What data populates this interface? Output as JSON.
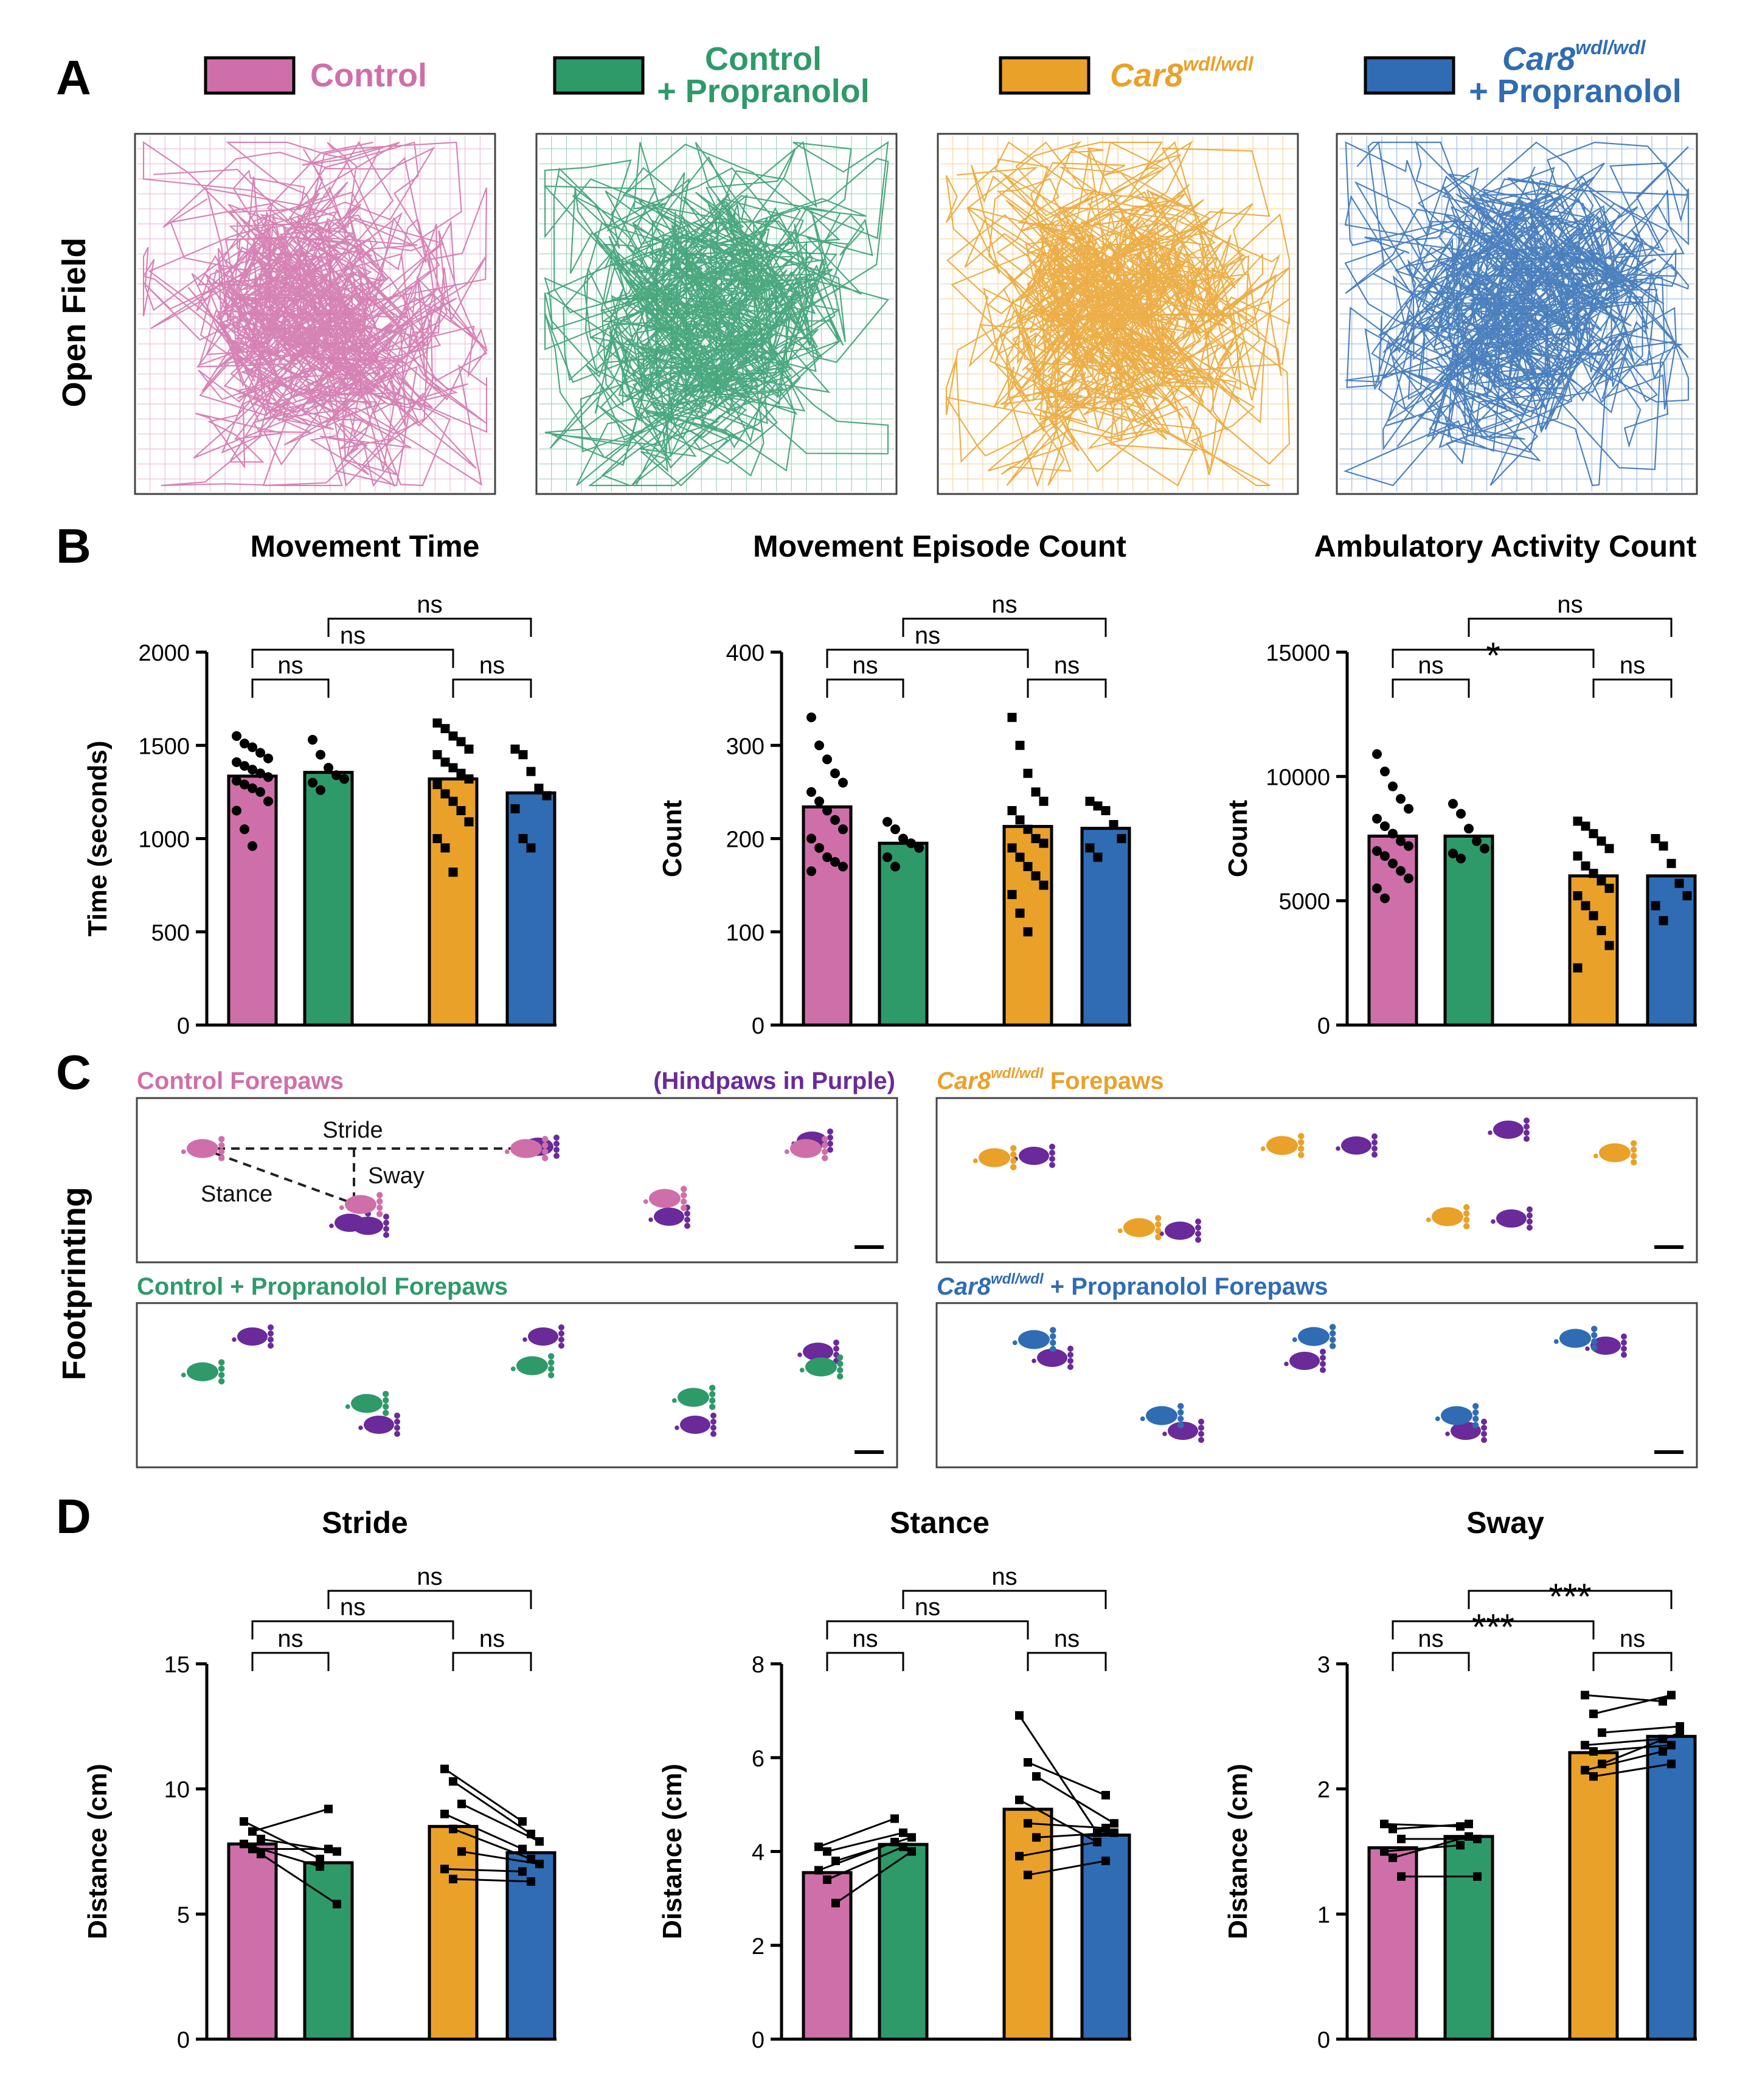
{
  "colors": {
    "control": "#cf6fa9",
    "control_prop": "#2e9a6a",
    "car8": "#e9a12a",
    "car8_prop": "#2f6cb3",
    "hind": "#6a2a9a"
  },
  "panel_letters": {
    "a": "A",
    "b": "B",
    "c": "C",
    "d": "D"
  },
  "legend": [
    {
      "key": "control",
      "line1": "Control",
      "line2": ""
    },
    {
      "key": "control_prop",
      "line1": "Control",
      "line2": "+ Propranolol"
    },
    {
      "key": "car8",
      "line1": "Car8",
      "sup": "wdl/wdl",
      "line2": ""
    },
    {
      "key": "car8_prop",
      "line1": "Car8",
      "sup": "wdl/wdl",
      "line2": "+ Propranolol"
    }
  ],
  "row_labels": {
    "open_field": "Open Field",
    "footprinting": "Footprinting"
  },
  "footprint_labels": {
    "control": "Control Forepaws",
    "hind": "(Hindpaws in Purple)",
    "car8_name": "Car8",
    "car8_sup": "wdl/wdl",
    "car8_suffix": " Forepaws",
    "control_prop": "Control + Propranolol Forepaws",
    "car8_prop_suffix": " + Propranolol Forepaws",
    "stride": "Stride",
    "stance": "Stance",
    "sway": "Sway"
  },
  "chart_data": [
    {
      "panel": "B",
      "type": "bar",
      "title": "Movement Time",
      "ylabel": "Time (seconds)",
      "ylim": [
        0,
        2000
      ],
      "yticks": [
        0,
        500,
        1000,
        1500,
        2000
      ],
      "categories": [
        "Control",
        "Control + Propranolol",
        "Car8 wdl/wdl",
        "Car8 wdl/wdl + Propranolol"
      ],
      "values": [
        1335,
        1355,
        1320,
        1245
      ],
      "points": [
        [
          1550,
          1510,
          1490,
          1460,
          1430,
          1410,
          1390,
          1370,
          1350,
          1330,
          1310,
          1290,
          1270,
          1250,
          1200,
          1150,
          1050,
          960
        ],
        [
          1530,
          1450,
          1380,
          1340,
          1320,
          1300,
          1260
        ],
        [
          1620,
          1590,
          1550,
          1520,
          1480,
          1450,
          1410,
          1380,
          1350,
          1320,
          1290,
          1240,
          1200,
          1150,
          1090,
          1000,
          950,
          820
        ],
        [
          1480,
          1450,
          1360,
          1270,
          1230,
          1160,
          1000,
          950
        ]
      ],
      "comparisons": [
        "ns",
        "ns",
        "ns",
        "ns"
      ]
    },
    {
      "panel": "B",
      "type": "bar",
      "title": "Movement Episode Count",
      "ylabel": "Count",
      "ylim": [
        0,
        400
      ],
      "yticks": [
        0,
        100,
        200,
        300,
        400
      ],
      "categories": [
        "Control",
        "Control + Propranolol",
        "Car8 wdl/wdl",
        "Car8 wdl/wdl + Propranolol"
      ],
      "values": [
        234,
        195,
        213,
        211
      ],
      "points": [
        [
          330,
          300,
          285,
          270,
          260,
          250,
          240,
          230,
          220,
          210,
          200,
          190,
          180,
          175,
          170,
          165
        ],
        [
          218,
          210,
          200,
          195,
          190,
          180,
          170
        ],
        [
          330,
          300,
          270,
          250,
          240,
          230,
          220,
          210,
          200,
          195,
          190,
          180,
          170,
          160,
          150,
          140,
          120,
          100
        ],
        [
          240,
          235,
          230,
          215,
          200,
          190,
          180
        ]
      ],
      "comparisons": [
        "ns",
        "ns",
        "ns",
        "ns"
      ]
    },
    {
      "panel": "B",
      "type": "bar",
      "title": "Ambulatory Activity Count",
      "ylabel": "Count",
      "ylim": [
        0,
        15000
      ],
      "yticks": [
        0,
        5000,
        10000,
        15000
      ],
      "categories": [
        "Control",
        "Control + Propranolol",
        "Car8 wdl/wdl",
        "Car8 wdl/wdl + Propranolol"
      ],
      "values": [
        7600,
        7600,
        6000,
        6000
      ],
      "points": [
        [
          10900,
          10200,
          9600,
          9100,
          8700,
          8300,
          8000,
          7700,
          7400,
          7200,
          7000,
          6800,
          6500,
          6200,
          5900,
          5500,
          5100
        ],
        [
          8900,
          8500,
          7900,
          7400,
          7100,
          6900,
          6700
        ],
        [
          8200,
          8000,
          7700,
          7400,
          7100,
          6800,
          6400,
          6100,
          5800,
          5500,
          5200,
          4800,
          4400,
          3800,
          3200,
          2300
        ],
        [
          7500,
          7200,
          6500,
          5700,
          5200,
          4800,
          4200
        ]
      ],
      "comparisons": [
        "ns",
        "*",
        "ns",
        "ns"
      ]
    },
    {
      "panel": "D",
      "type": "bar",
      "title": "Stride",
      "ylabel": "Distance (cm)",
      "ylim": [
        0,
        15
      ],
      "yticks": [
        0,
        5,
        10,
        15
      ],
      "categories": [
        "Control",
        "Control + Propranolol",
        "Car8 wdl/wdl",
        "Car8 wdl/wdl + Propranolol"
      ],
      "values": [
        7.8,
        7.05,
        8.5,
        7.45
      ],
      "paired_a": [
        8.7,
        8.3,
        8.0,
        7.8,
        7.6,
        7.4
      ],
      "paired_b": [
        7.2,
        9.2,
        7.5,
        6.9,
        7.6,
        5.4
      ],
      "paired_c": [
        10.8,
        10.3,
        9.4,
        9.0,
        8.4,
        7.5,
        6.8,
        6.4
      ],
      "paired_d": [
        8.7,
        8.2,
        7.9,
        7.6,
        7.2,
        7.0,
        6.7,
        6.3
      ],
      "comparisons": [
        "ns",
        "ns",
        "ns",
        "ns"
      ]
    },
    {
      "panel": "D",
      "type": "bar",
      "title": "Stance",
      "ylabel": "Distance (cm)",
      "ylim": [
        0,
        8
      ],
      "yticks": [
        0,
        2,
        4,
        6,
        8
      ],
      "categories": [
        "Control",
        "Control + Propranolol",
        "Car8 wdl/wdl",
        "Car8 wdl/wdl + Propranolol"
      ],
      "values": [
        3.55,
        4.15,
        4.9,
        4.35
      ],
      "paired_a": [
        4.1,
        4.0,
        3.8,
        3.6,
        3.4,
        2.9
      ],
      "paired_b": [
        4.7,
        4.4,
        4.3,
        4.2,
        4.1,
        4.0
      ],
      "paired_c": [
        6.9,
        5.9,
        5.6,
        5.1,
        4.6,
        4.3,
        3.9,
        3.5
      ],
      "paired_d": [
        4.4,
        5.2,
        4.6,
        4.2,
        4.5,
        4.4,
        4.2,
        3.8
      ],
      "comparisons": [
        "ns",
        "ns",
        "ns",
        "ns"
      ]
    },
    {
      "panel": "D",
      "type": "bar",
      "title": "Sway",
      "ylabel": "Distance (cm)",
      "ylim": [
        0,
        3
      ],
      "yticks": [
        0,
        1,
        2,
        3
      ],
      "categories": [
        "Control",
        "Control + Propranolol",
        "Car8 wdl/wdl",
        "Car8 wdl/wdl + Propranolol"
      ],
      "values": [
        1.53,
        1.62,
        2.29,
        2.42
      ],
      "paired_a": [
        1.72,
        1.68,
        1.6,
        1.5,
        1.45,
        1.3
      ],
      "paired_b": [
        1.7,
        1.72,
        1.6,
        1.55,
        1.62,
        1.3
      ],
      "paired_c": [
        2.75,
        2.6,
        2.45,
        2.35,
        2.3,
        2.2,
        2.15,
        2.1
      ],
      "paired_d": [
        2.7,
        2.75,
        2.5,
        2.4,
        2.35,
        2.45,
        2.3,
        2.2
      ],
      "comparisons": [
        "ns",
        "***",
        "***",
        "ns"
      ]
    }
  ]
}
